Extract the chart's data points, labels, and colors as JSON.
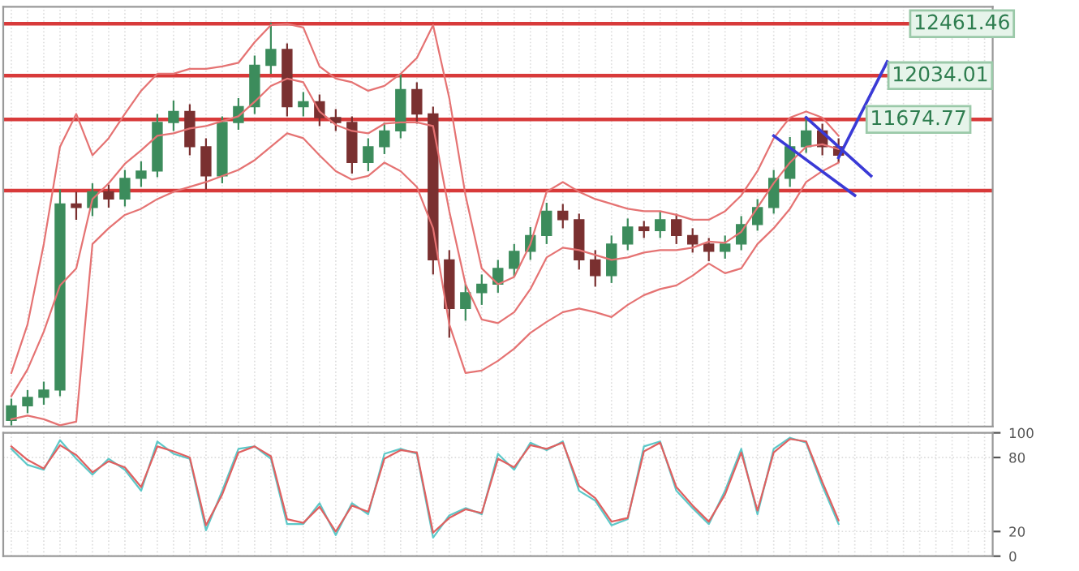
{
  "chart_data": [
    {
      "type": "candlestick",
      "categories": [
        null,
        null,
        null,
        null,
        null,
        null,
        null,
        null,
        null,
        null,
        null,
        null,
        null,
        null,
        null,
        null,
        null,
        null,
        null,
        null,
        null,
        null,
        null,
        null,
        null,
        null,
        null,
        null,
        null,
        null,
        null,
        null,
        null,
        null,
        null,
        null,
        null,
        null,
        null,
        null,
        null,
        null,
        null,
        null,
        null,
        null,
        null,
        null,
        null,
        null,
        null,
        null,
        null,
        null,
        null,
        null,
        null,
        null,
        null,
        null,
        null
      ],
      "ohlc": [
        [
          9200,
          9380,
          9160,
          9320
        ],
        [
          9320,
          9450,
          9260,
          9390
        ],
        [
          9390,
          9520,
          9330,
          9450
        ],
        [
          9450,
          11100,
          9400,
          10980
        ],
        [
          10980,
          11080,
          10850,
          10950
        ],
        [
          10950,
          11150,
          10880,
          11080
        ],
        [
          11080,
          11140,
          10950,
          11020
        ],
        [
          11020,
          11260,
          10960,
          11190
        ],
        [
          11190,
          11330,
          11120,
          11250
        ],
        [
          11250,
          11720,
          11200,
          11650
        ],
        [
          11650,
          11830,
          11580,
          11740
        ],
        [
          11740,
          11800,
          11380,
          11450
        ],
        [
          11450,
          11520,
          11100,
          11210
        ],
        [
          11210,
          11700,
          11150,
          11650
        ],
        [
          11650,
          11850,
          11590,
          11780
        ],
        [
          11780,
          12200,
          11720,
          12120
        ],
        [
          12120,
          12470,
          12050,
          12250
        ],
        [
          12250,
          12300,
          11700,
          11780
        ],
        [
          11780,
          11900,
          11700,
          11820
        ],
        [
          11820,
          11880,
          11620,
          11690
        ],
        [
          11690,
          11760,
          11580,
          11650
        ],
        [
          11650,
          11700,
          11230,
          11320
        ],
        [
          11320,
          11520,
          11250,
          11450
        ],
        [
          11450,
          11650,
          11390,
          11580
        ],
        [
          11580,
          12050,
          11520,
          11920
        ],
        [
          11920,
          11980,
          11640,
          11720
        ],
        [
          11720,
          11780,
          10400,
          10520
        ],
        [
          10520,
          10600,
          9880,
          10120
        ],
        [
          10120,
          10320,
          10020,
          10250
        ],
        [
          10250,
          10400,
          10150,
          10320
        ],
        [
          10320,
          10520,
          10250,
          10450
        ],
        [
          10450,
          10650,
          10380,
          10590
        ],
        [
          10590,
          10790,
          10520,
          10720
        ],
        [
          10720,
          10990,
          10650,
          10920
        ],
        [
          10920,
          10980,
          10780,
          10850
        ],
        [
          10850,
          10900,
          10440,
          10520
        ],
        [
          10520,
          10600,
          10300,
          10390
        ],
        [
          10390,
          10720,
          10330,
          10650
        ],
        [
          10650,
          10860,
          10600,
          10790
        ],
        [
          10790,
          10840,
          10700,
          10760
        ],
        [
          10760,
          10920,
          10700,
          10850
        ],
        [
          10850,
          10900,
          10650,
          10720
        ],
        [
          10720,
          10780,
          10580,
          10650
        ],
        [
          10650,
          10700,
          10510,
          10590
        ],
        [
          10590,
          10720,
          10530,
          10650
        ],
        [
          10650,
          10880,
          10600,
          10810
        ],
        [
          10810,
          11020,
          10760,
          10950
        ],
        [
          10950,
          11260,
          10900,
          11190
        ],
        [
          11190,
          11530,
          11120,
          11450
        ],
        [
          11450,
          11700,
          11400,
          11580
        ],
        [
          11580,
          11640,
          11380,
          11450
        ],
        [
          11450,
          11520,
          11320,
          11380
        ],
        null,
        null,
        null,
        null,
        null,
        null,
        null,
        null,
        null
      ],
      "series": [
        {
          "type": "line",
          "color": "#e57373",
          "values": [
            9590,
            9990,
            10650,
            11450,
            11720,
            11380,
            11520,
            11720,
            11910,
            12050,
            12050,
            12090,
            12090,
            12110,
            12140,
            12310,
            12450,
            12460,
            12430,
            12110,
            12010,
            11980,
            11910,
            11950,
            12050,
            12180,
            12450,
            11850,
            11050,
            10450,
            10320,
            10380,
            10650,
            11080,
            11160,
            11080,
            11020,
            10980,
            10940,
            10920,
            10920,
            10890,
            10850,
            10850,
            10920,
            11050,
            11250,
            11520,
            11690,
            11740,
            11690,
            11540,
            null,
            null,
            null,
            null,
            null,
            null,
            null,
            null,
            null
          ]
        },
        {
          "type": "line",
          "color": "#e57373",
          "values": [
            9400,
            9620,
            9930,
            10310,
            10450,
            11020,
            11150,
            11310,
            11420,
            11540,
            11560,
            11600,
            11620,
            11660,
            11700,
            11820,
            11950,
            12010,
            11980,
            11740,
            11630,
            11580,
            11560,
            11640,
            11650,
            11650,
            11620,
            10920,
            10320,
            10030,
            10000,
            10090,
            10280,
            10540,
            10620,
            10600,
            10560,
            10520,
            10540,
            10580,
            10600,
            10600,
            10620,
            10670,
            10660,
            10750,
            10950,
            11150,
            11320,
            11450,
            11470,
            11430,
            null,
            null,
            null,
            null,
            null,
            null,
            null,
            null,
            null
          ]
        },
        {
          "type": "line",
          "color": "#e57373",
          "values": [
            9210,
            9240,
            9210,
            9160,
            9190,
            10650,
            10780,
            10890,
            10940,
            11020,
            11080,
            11120,
            11160,
            11210,
            11260,
            11340,
            11450,
            11560,
            11520,
            11380,
            11250,
            11180,
            11210,
            11320,
            11250,
            11120,
            10780,
            9990,
            9590,
            9610,
            9690,
            9790,
            9920,
            10010,
            10090,
            10120,
            10090,
            10050,
            10150,
            10230,
            10280,
            10310,
            10390,
            10490,
            10410,
            10450,
            10650,
            10780,
            10940,
            11160,
            11250,
            11320,
            null,
            null,
            null,
            null,
            null,
            null,
            null,
            null,
            null
          ]
        },
        {
          "type": "line",
          "color": "#3a3ad6",
          "values": [
            null,
            null,
            null,
            null,
            null,
            null,
            null,
            null,
            null,
            null,
            null,
            null,
            null,
            null,
            null,
            null,
            null,
            null,
            null,
            null,
            null,
            null,
            null,
            null,
            null,
            null,
            null,
            null,
            null,
            null,
            null,
            null,
            null,
            null,
            null,
            null,
            null,
            null,
            null,
            null,
            null,
            null,
            null,
            null,
            null,
            null,
            null,
            null,
            null,
            11690,
            null,
            null,
            null,
            11210,
            null,
            null,
            null,
            null,
            null,
            null,
            null
          ]
        },
        {
          "type": "line",
          "color": "#3a3ad6",
          "values": [
            null,
            null,
            null,
            null,
            null,
            null,
            null,
            null,
            null,
            null,
            null,
            null,
            null,
            null,
            null,
            null,
            null,
            null,
            null,
            null,
            null,
            null,
            null,
            null,
            null,
            null,
            null,
            null,
            null,
            null,
            null,
            null,
            null,
            null,
            null,
            null,
            null,
            null,
            null,
            null,
            null,
            null,
            null,
            null,
            null,
            null,
            null,
            11540,
            null,
            null,
            null,
            null,
            11050,
            null,
            null,
            null,
            null,
            null,
            null,
            null,
            null
          ]
        },
        {
          "type": "line",
          "color": "#3a3ad6",
          "values": [
            null,
            null,
            null,
            null,
            null,
            null,
            null,
            null,
            null,
            null,
            null,
            null,
            null,
            null,
            null,
            null,
            null,
            null,
            null,
            null,
            null,
            null,
            null,
            null,
            null,
            null,
            null,
            null,
            null,
            null,
            null,
            null,
            null,
            null,
            null,
            null,
            null,
            null,
            null,
            null,
            null,
            null,
            null,
            null,
            null,
            null,
            null,
            null,
            null,
            null,
            null,
            11360,
            null,
            null,
            12150,
            null,
            null,
            null,
            null,
            null,
            null
          ]
        }
      ],
      "ref_lines": [
        {
          "axis": "y",
          "value": 12461.46,
          "label": "12461.46",
          "color": "#d83a3a"
        },
        {
          "axis": "y",
          "value": 12034.01,
          "label": "12034.01",
          "color": "#d83a3a"
        },
        {
          "axis": "y",
          "value": 11674.77,
          "label": "11674.77",
          "color": "#d83a3a"
        },
        {
          "axis": "y",
          "value": 11090,
          "color": "#d83a3a"
        }
      ],
      "ylim": [
        9150,
        12600
      ],
      "grid": true,
      "tick_labels": false
    },
    {
      "type": "line",
      "categories": [
        null,
        null,
        null,
        null,
        null,
        null,
        null,
        null,
        null,
        null,
        null,
        null,
        null,
        null,
        null,
        null,
        null,
        null,
        null,
        null,
        null,
        null,
        null,
        null,
        null,
        null,
        null,
        null,
        null,
        null,
        null,
        null,
        null,
        null,
        null,
        null,
        null,
        null,
        null,
        null,
        null,
        null,
        null,
        null,
        null,
        null,
        null,
        null,
        null,
        null,
        null,
        null,
        null,
        null,
        null,
        null,
        null,
        null,
        null,
        null,
        null
      ],
      "series": [
        {
          "color": "#5cc8c8",
          "values": [
            87,
            74,
            70,
            94,
            79,
            66,
            79,
            70,
            53,
            93,
            83,
            79,
            21,
            53,
            87,
            89,
            79,
            26,
            26,
            43,
            17,
            43,
            34,
            83,
            87,
            83,
            15,
            33,
            39,
            34,
            83,
            70,
            92,
            86,
            93,
            53,
            45,
            25,
            30,
            89,
            93,
            53,
            39,
            26,
            53,
            87,
            34,
            87,
            96,
            92,
            57,
            26,
            null,
            null,
            null,
            null,
            null,
            null,
            null,
            null,
            null
          ]
        },
        {
          "color": "#e06060",
          "values": [
            89,
            78,
            71,
            90,
            82,
            68,
            77,
            72,
            56,
            89,
            85,
            80,
            25,
            50,
            84,
            89,
            81,
            30,
            27,
            40,
            20,
            41,
            36,
            79,
            86,
            84,
            19,
            31,
            38,
            35,
            79,
            72,
            90,
            87,
            92,
            57,
            47,
            28,
            31,
            85,
            92,
            56,
            41,
            28,
            50,
            84,
            37,
            84,
            95,
            93,
            60,
            29,
            null,
            null,
            null,
            null,
            null,
            null,
            null,
            null,
            null
          ]
        }
      ],
      "ylim": [
        0,
        100
      ],
      "yticks": [
        0,
        20,
        80,
        100
      ],
      "grid": true,
      "tick_labels": "y"
    }
  ]
}
